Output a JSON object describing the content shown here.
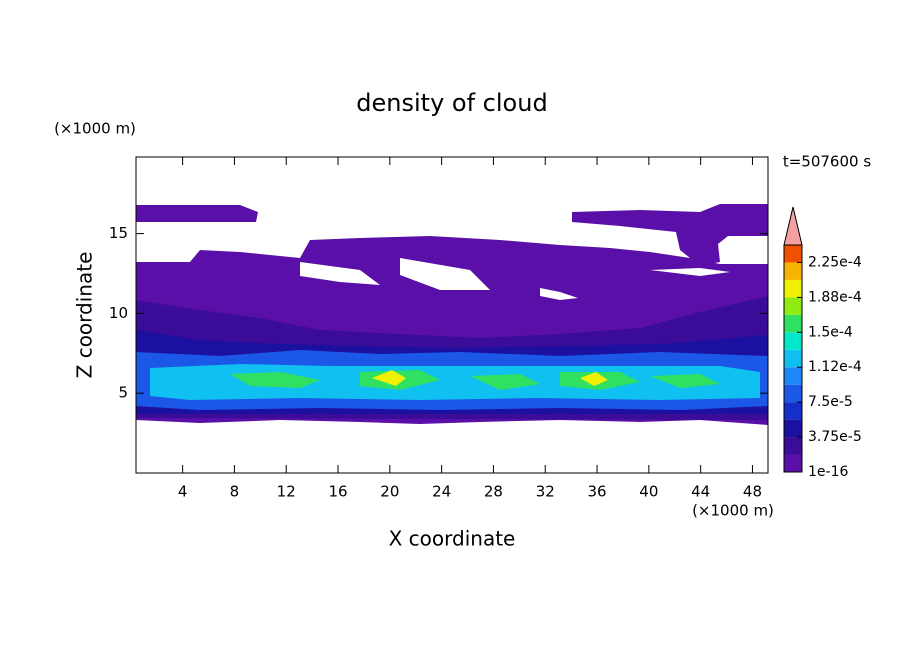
{
  "chart_data": {
    "type": "contour",
    "title": "density of cloud",
    "xlabel": "X coordinate",
    "ylabel": "Z coordinate",
    "x_unit_label": "(×1000 m)",
    "y_unit_label": "(×1000 m)",
    "time_label": "t=507600 s",
    "xlim": [
      0.4,
      49.2
    ],
    "xticks": [
      4,
      8,
      12,
      16,
      20,
      24,
      28,
      32,
      36,
      40,
      44,
      48
    ],
    "ylim": [
      0,
      19.8
    ],
    "yticks": [
      5,
      10,
      15
    ],
    "clim": [
      1e-16,
      0.00024375
    ],
    "cticks": [
      {
        "value": 1e-16,
        "label": "1e-16"
      },
      {
        "value": 3.75e-05,
        "label": "3.75e-5"
      },
      {
        "value": 7.5e-05,
        "label": "7.5e-5"
      },
      {
        "value": 0.0001125,
        "label": "1.12e-4"
      },
      {
        "value": 0.00015,
        "label": "1.5e-4"
      },
      {
        "value": 0.0001875,
        "label": "1.88e-4"
      },
      {
        "value": 0.000225,
        "label": "2.25e-4"
      }
    ],
    "colors": [
      "#5a10a8",
      "#3a0c98",
      "#1c10a0",
      "#1430c8",
      "#1c58e8",
      "#1e88f8",
      "#10c0f0",
      "#00e8c8",
      "#30e060",
      "#90ec10",
      "#f0f000",
      "#f8b400",
      "#f05000"
    ],
    "over_color": "#f4a0a0"
  }
}
